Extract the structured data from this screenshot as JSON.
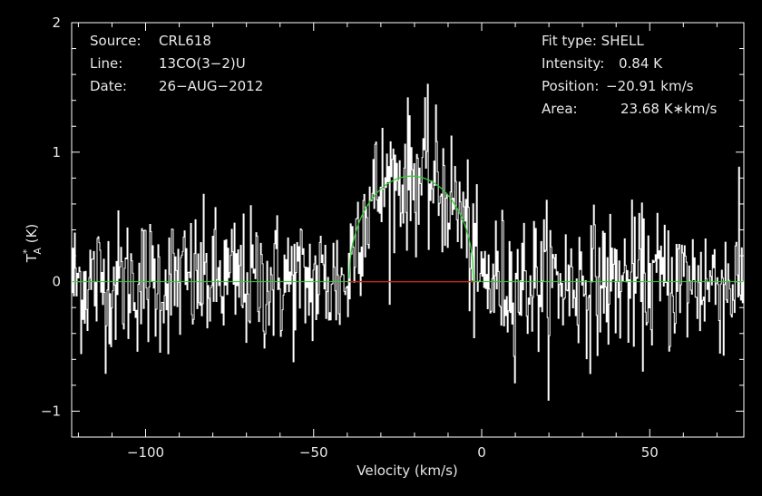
{
  "header_left": {
    "source_label": "Source:",
    "source_value": "CRL618",
    "line_label": "Line:",
    "line_value": "13CO(3−2)U",
    "date_label": "Date:",
    "date_value": "26−AUG−2012"
  },
  "header_right": {
    "fit_type": "Fit type: SHELL",
    "intensity_label": "Intensity:",
    "intensity_value": "0.84 K",
    "position_label": "Position:",
    "position_value": "−20.91 km/s",
    "area_label": "Area:",
    "area_value": "23.68 K∗km/s"
  },
  "colors": {
    "background": "#000000",
    "data": "#ffffff",
    "fit": "#33cc33",
    "window": "#cc2222",
    "axes": "#ffffff"
  },
  "chart_data": {
    "type": "line",
    "xlabel": "Velocity (km/s)",
    "ylabel_main": "T",
    "ylabel_sup": "*",
    "ylabel_sub": "A",
    "ylabel_unit": " (K)",
    "xlim": [
      -122,
      78
    ],
    "ylim": [
      -1.2,
      2.0
    ],
    "x_ticks": [
      -100,
      -50,
      0,
      50
    ],
    "x_tick_labels": [
      "−100",
      "−50",
      "0",
      "50"
    ],
    "y_ticks": [
      -1,
      0,
      1,
      2
    ],
    "y_tick_labels": [
      "−1",
      "0",
      "1",
      "2"
    ],
    "series": [
      {
        "kind": "spectrum-histogram",
        "noise_rms": 0.27,
        "x_range": [
          -122,
          78
        ],
        "approx_peak_x": -19
      },
      {
        "kind": "shell-fit",
        "center": -20.91,
        "peak": 0.84,
        "half_width": 18.5,
        "horn": 0.03
      },
      {
        "kind": "fit-window",
        "x": [
          -39.4,
          -2.4
        ],
        "y": 0
      }
    ]
  }
}
